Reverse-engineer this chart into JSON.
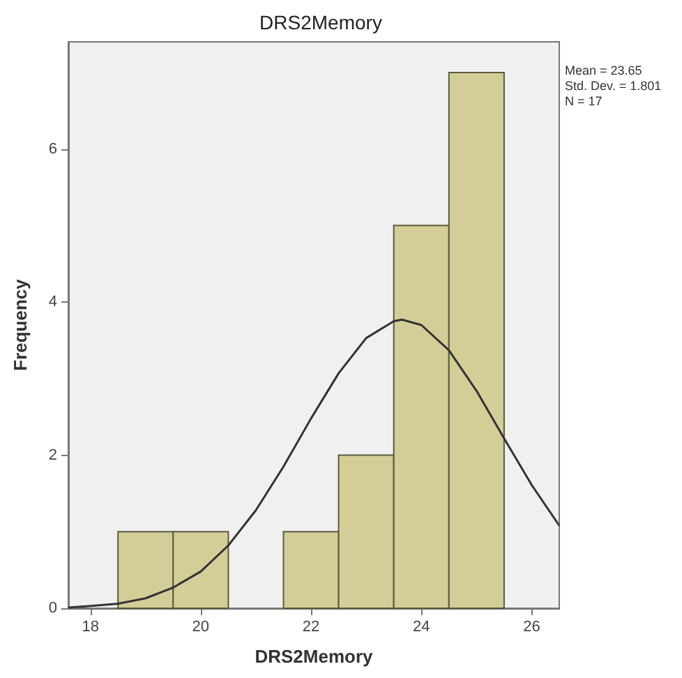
{
  "chart_data": {
    "type": "histogram",
    "title": "DRS2Memory",
    "xlabel": "DRS2Memory",
    "ylabel": "Frequency",
    "bins": [
      18.5,
      19.5,
      20.5,
      21.5,
      22.5,
      23.5,
      24.5,
      25.5
    ],
    "values": [
      1,
      1,
      0,
      1,
      2,
      5,
      7
    ],
    "color": "#d3ce97",
    "series": [
      {
        "type": "line",
        "color": "#333333",
        "x": [
          17.6,
          18,
          18.5,
          19,
          19.5,
          20,
          20.5,
          21,
          21.5,
          22,
          22.5,
          23,
          23.5,
          23.65,
          24,
          24.5,
          25,
          25.5,
          26,
          26.5
        ],
        "values": [
          0.01,
          0.03,
          0.06,
          0.13,
          0.27,
          0.48,
          0.82,
          1.28,
          1.85,
          2.48,
          3.07,
          3.53,
          3.75,
          3.77,
          3.7,
          3.37,
          2.84,
          2.22,
          1.61,
          1.08
        ]
      }
    ],
    "annotations": [
      "Mean = 23.65",
      "Std. Dev. = 1.801",
      "N = 17"
    ],
    "xlim": [
      17.6,
      26.5
    ],
    "xticks": [
      18,
      20,
      22,
      24,
      26
    ],
    "ylim": [
      0,
      7.4
    ],
    "yticks": [
      0,
      2,
      4,
      6
    ],
    "grid": false,
    "marker": "none",
    "line_style": "solid"
  }
}
